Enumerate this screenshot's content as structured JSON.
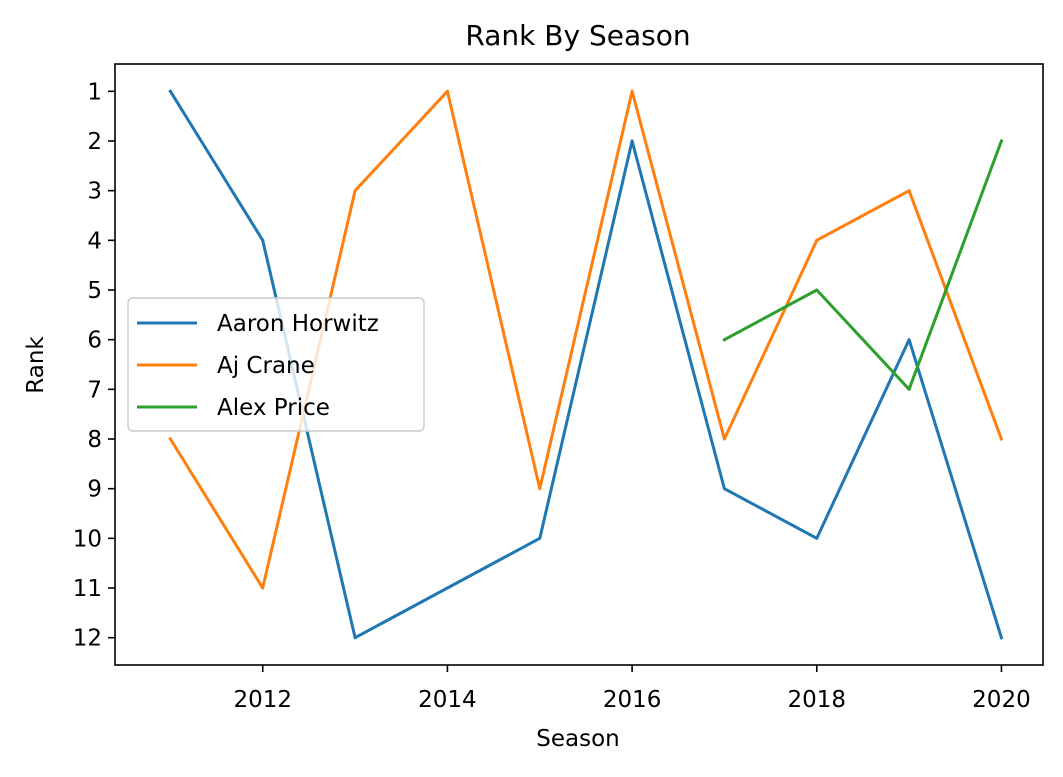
{
  "chart_data": {
    "type": "line",
    "title": "Rank By Season",
    "xlabel": "Season",
    "ylabel": "Rank",
    "x": [
      2011,
      2012,
      2013,
      2014,
      2015,
      2016,
      2017,
      2018,
      2019,
      2020
    ],
    "xlim": [
      2010.4,
      2020.45
    ],
    "ylim": [
      12.55,
      0.45
    ],
    "y_inverted": true,
    "x_ticks": [
      2012,
      2014,
      2016,
      2018,
      2020
    ],
    "y_ticks": [
      1,
      2,
      3,
      4,
      5,
      6,
      7,
      8,
      9,
      10,
      11,
      12
    ],
    "grid": false,
    "legend_position": "center-left",
    "series": [
      {
        "name": "Aaron Horwitz",
        "color": "#1f77b4",
        "points": [
          [
            2011,
            1
          ],
          [
            2012,
            4
          ],
          [
            2013,
            12
          ],
          [
            2014,
            11
          ],
          [
            2015,
            10
          ],
          [
            2016,
            2
          ],
          [
            2017,
            9
          ],
          [
            2018,
            10
          ],
          [
            2019,
            6
          ],
          [
            2020,
            12
          ]
        ]
      },
      {
        "name": "Aj Crane",
        "color": "#ff7f0e",
        "points": [
          [
            2011,
            8
          ],
          [
            2012,
            11
          ],
          [
            2013,
            3
          ],
          [
            2014,
            1
          ],
          [
            2015,
            9
          ],
          [
            2016,
            1
          ],
          [
            2017,
            8
          ],
          [
            2018,
            4
          ],
          [
            2019,
            3
          ],
          [
            2020,
            8
          ]
        ]
      },
      {
        "name": "Alex Price",
        "color": "#2ca02c",
        "points": [
          [
            2017,
            6
          ],
          [
            2018,
            5
          ],
          [
            2019,
            7
          ],
          [
            2020,
            2
          ]
        ]
      }
    ]
  }
}
